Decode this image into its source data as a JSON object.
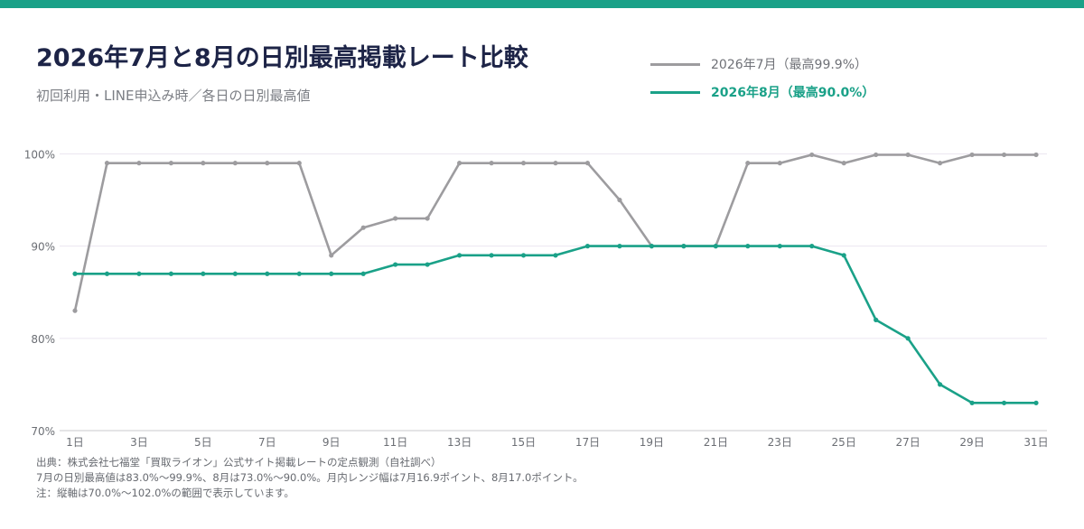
{
  "title": "2026年7月と8月の日別最高掲載レート比較",
  "subtitle": "初回利用・LINE申込み時／各日の日別最高値",
  "colors": {
    "accent": "#1aa188",
    "title": "#1d2447",
    "july": "#9d9c9f",
    "august": "#1aa188",
    "grid": "#ece6f1"
  },
  "notes": [
    "出典：株式会社七福堂「買取ライオン」公式サイト掲載レートの定点観測（自社調べ）",
    "7月の日別最高値は83.0%〜99.9%、8月は73.0%〜90.0%。月内レンジ幅は7月16.9ポイント、8月17.0ポイント。",
    "注：縦軸は70.0%〜102.0%の範囲で表示しています。"
  ],
  "chart_data": {
    "type": "line",
    "x": [
      1,
      2,
      3,
      4,
      5,
      6,
      7,
      8,
      9,
      10,
      11,
      12,
      13,
      14,
      15,
      16,
      17,
      18,
      19,
      20,
      21,
      22,
      23,
      24,
      25,
      26,
      27,
      28,
      29,
      30,
      31
    ],
    "x_tick_labels": [
      "1日",
      "3日",
      "5日",
      "7日",
      "9日",
      "11日",
      "13日",
      "15日",
      "17日",
      "19日",
      "21日",
      "23日",
      "25日",
      "27日",
      "29日",
      "31日"
    ],
    "x_tick_values": [
      1,
      3,
      5,
      7,
      9,
      11,
      13,
      15,
      17,
      19,
      21,
      23,
      25,
      27,
      29,
      31
    ],
    "y_tick_labels": [
      "100%",
      "90%",
      "80%",
      "70%"
    ],
    "y_tick_values": [
      100,
      90,
      80,
      70
    ],
    "ylim": [
      70,
      102
    ],
    "grid": true,
    "legend_position": "top-right",
    "series": [
      {
        "name": "2026年7月（最高99.9%）",
        "color": "#9d9c9f",
        "values": [
          83,
          99,
          99,
          99,
          99,
          99,
          99,
          99,
          89,
          92,
          93,
          93,
          99,
          99,
          99,
          99,
          99,
          95,
          90,
          90,
          90,
          99,
          99,
          99.9,
          99,
          99.9,
          99.9,
          99,
          99.9,
          99.9,
          99.9
        ]
      },
      {
        "name": "2026年8月（最高90.0%）",
        "color": "#1aa188",
        "values": [
          87,
          87,
          87,
          87,
          87,
          87,
          87,
          87,
          87,
          87,
          88,
          88,
          89,
          89,
          89,
          89,
          90,
          90,
          90,
          90,
          90,
          90,
          90,
          90,
          89,
          82,
          80,
          75,
          73,
          73,
          73
        ]
      }
    ]
  }
}
